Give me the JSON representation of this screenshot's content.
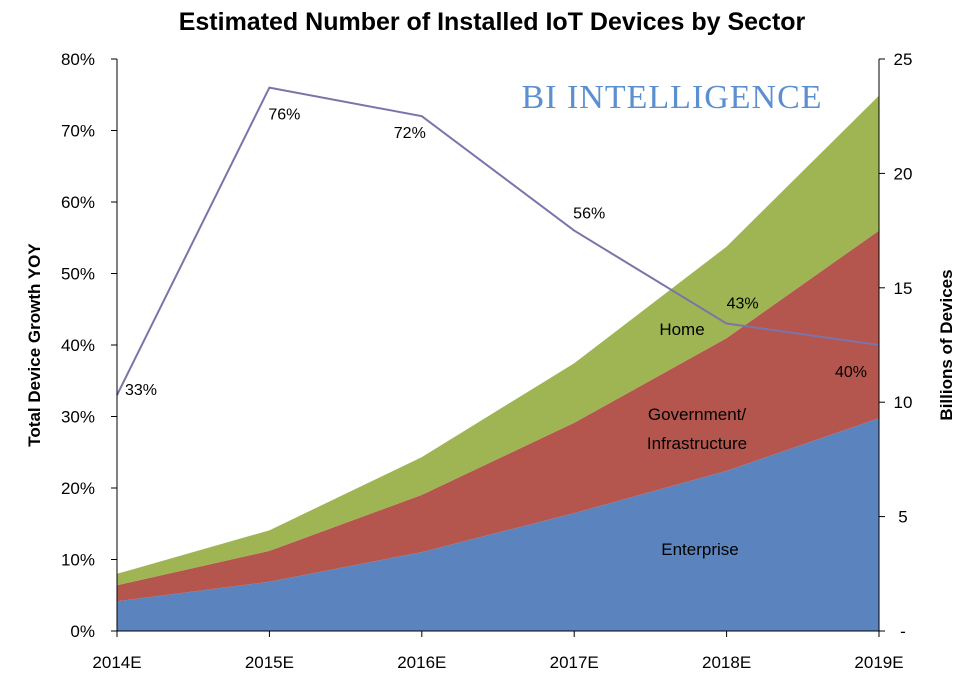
{
  "chart_data": {
    "type": "area",
    "title": "Estimated Number of Installed IoT Devices by Sector",
    "watermark": "BI INTELLIGENCE",
    "categories": [
      "2014E",
      "2015E",
      "2016E",
      "2017E",
      "2018E",
      "2019E"
    ],
    "stacked_series_label": "Billions of Devices",
    "series": [
      {
        "name": "Enterprise",
        "color": "#5b84bf",
        "values": [
          1.3,
          2.15,
          3.45,
          5.15,
          7.0,
          9.3
        ]
      },
      {
        "name": "Government/ Infrastructure",
        "label_lines": [
          "Government/",
          "Infrastructure"
        ],
        "color": "#b5564e",
        "values": [
          0.7,
          1.35,
          2.5,
          3.95,
          5.8,
          8.2
        ]
      },
      {
        "name": "Home",
        "label_lines": [
          "Home"
        ],
        "color": "#9fb553",
        "values": [
          0.5,
          0.9,
          1.65,
          2.6,
          4.0,
          5.9
        ]
      }
    ],
    "line_series": {
      "name": "Total Device Growth YOY",
      "color": "#7b74a8",
      "values": [
        33,
        76,
        72,
        56,
        43,
        40
      ],
      "labels": [
        "33%",
        "76%",
        "72%",
        "56%",
        "43%",
        "40%"
      ]
    },
    "y_left": {
      "label": "Total Device Growth YOY",
      "min": 0,
      "max": 80,
      "ticks": [
        "0%",
        "10%",
        "20%",
        "30%",
        "40%",
        "50%",
        "60%",
        "70%",
        "80%"
      ]
    },
    "y_right": {
      "label": "Billions of Devices",
      "min": 0,
      "max": 25,
      "ticks": [
        "-",
        "5",
        "10",
        "15",
        "20",
        "25"
      ]
    },
    "grid": false
  }
}
